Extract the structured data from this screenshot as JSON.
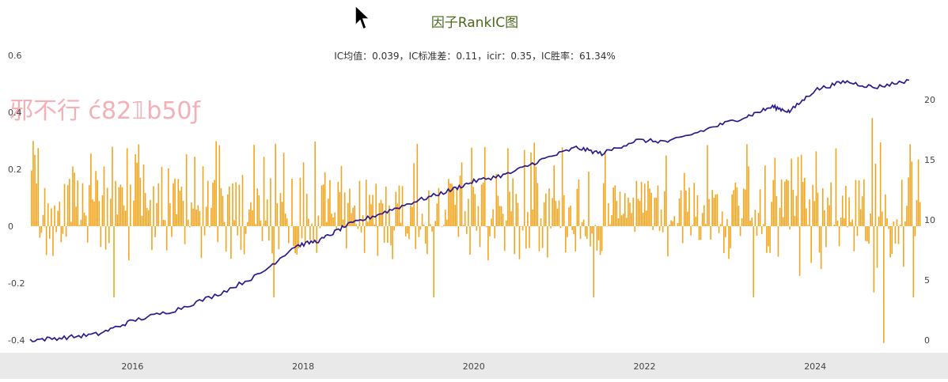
{
  "chart_data": {
    "type": "bar+line",
    "title": "因子RankIC图",
    "subtitle": "IC均值：0.039，IC标准差：0.11，icir：0.35，IC胜率：61.34%",
    "x_range": [
      2014.8,
      2025.25
    ],
    "x_ticks": [
      "2016",
      "2018",
      "2020",
      "2022",
      "2024"
    ],
    "y_left": {
      "ylim": [
        -0.4,
        0.6
      ],
      "ticks": [
        "0.6",
        "0.4",
        "0.2",
        "0",
        "-0.2",
        "-0.4"
      ]
    },
    "y_right": {
      "ylim": [
        0,
        21.5
      ],
      "ticks": [
        "20",
        "15",
        "10",
        "5",
        "0"
      ]
    },
    "series": [
      {
        "type": "bar",
        "axis": "left",
        "color": "#f2a51e",
        "values_summary": "weekly RankIC values, mostly within -0.2 to 0.3, extremes near -0.41 and 0.38"
      },
      {
        "type": "line",
        "axis": "right",
        "color": "#2a1a8a",
        "points": [
          [
            2014.8,
            0
          ],
          [
            2015.2,
            0.2
          ],
          [
            2015.6,
            0.5
          ],
          [
            2016.0,
            1.6
          ],
          [
            2016.5,
            2.5
          ],
          [
            2017.0,
            3.8
          ],
          [
            2017.5,
            5.5
          ],
          [
            2017.9,
            7.8
          ],
          [
            2018.2,
            8.3
          ],
          [
            2018.5,
            9.5
          ],
          [
            2018.9,
            10.5
          ],
          [
            2019.3,
            11.5
          ],
          [
            2019.7,
            12.4
          ],
          [
            2020.0,
            13.2
          ],
          [
            2020.4,
            13.8
          ],
          [
            2020.8,
            15.0
          ],
          [
            2021.2,
            16.0
          ],
          [
            2021.5,
            15.5
          ],
          [
            2021.9,
            16.6
          ],
          [
            2022.3,
            16.5
          ],
          [
            2022.8,
            17.7
          ],
          [
            2023.2,
            18.6
          ],
          [
            2023.5,
            19.4
          ],
          [
            2023.7,
            19.0
          ],
          [
            2024.0,
            20.8
          ],
          [
            2024.35,
            21.5
          ],
          [
            2024.7,
            21.0
          ],
          [
            2025.1,
            21.6
          ]
        ]
      }
    ],
    "grid": false,
    "legend": "none"
  },
  "overlay": {
    "watermark": "邪不行 ć82𝟙b50ƒ"
  }
}
